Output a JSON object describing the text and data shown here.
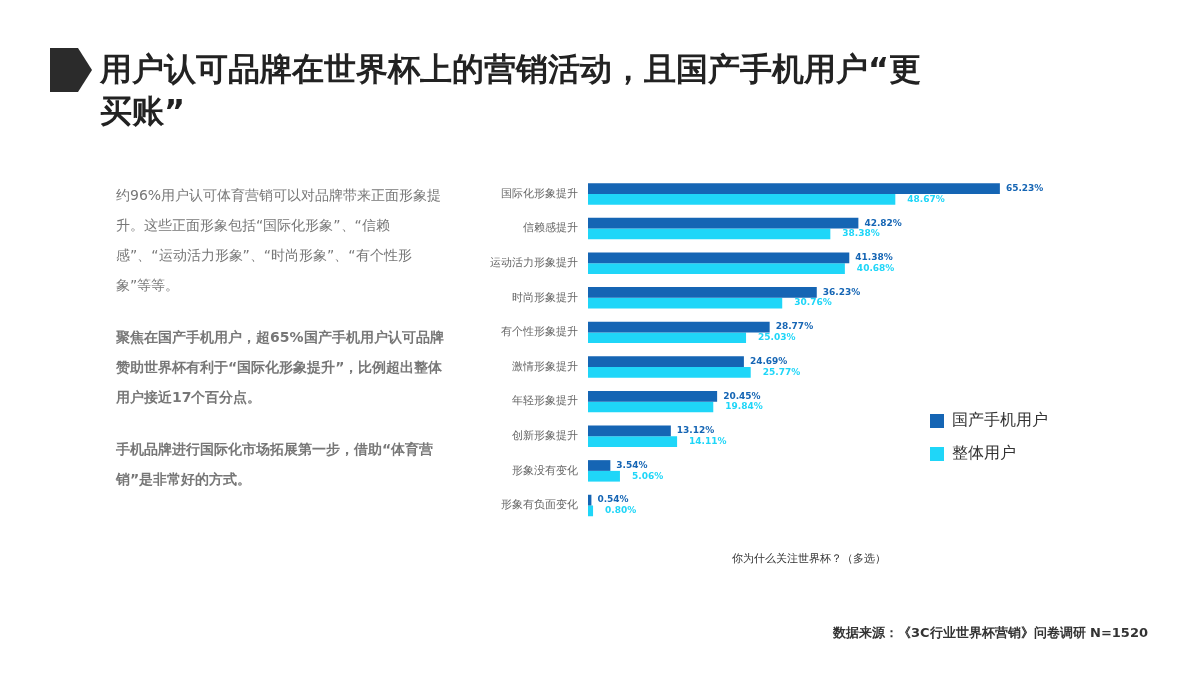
{
  "chart_data": {
    "type": "bar",
    "orientation": "horizontal",
    "title": "用户认可品牌在世界杯上的营销活动，且国产手机用户“更买账”",
    "xlabel": "你为什么关注世界杯？（多选）",
    "categories": [
      "国际化形象提升",
      "信赖感提升",
      "运动活力形象提升",
      "时尚形象提升",
      "有个性形象提升",
      "激情形象提升",
      "年轻形象提升",
      "创新形象提升",
      "形象没有变化",
      "形象有负面变化"
    ],
    "series": [
      {
        "name": "国产手机用户",
        "color": "#1565b4",
        "values": [
          65.23,
          42.82,
          41.38,
          36.23,
          28.77,
          24.69,
          20.45,
          13.12,
          3.54,
          0.54
        ],
        "value_labels": [
          "65.23%",
          "42.82%",
          "41.38%",
          "36.23%",
          "28.77%",
          "24.69%",
          "20.45%",
          "13.12%",
          "3.54%",
          "0.54%"
        ]
      },
      {
        "name": "整体用户",
        "color": "#1fd6f8",
        "values": [
          48.67,
          38.38,
          40.68,
          30.76,
          25.03,
          25.77,
          19.84,
          14.11,
          5.06,
          0.8
        ],
        "value_labels": [
          "48.67%",
          "38.38%",
          "40.68%",
          "30.76%",
          "25.03%",
          "25.77%",
          "19.84%",
          "14.11%",
          "5.06%",
          "0.80%"
        ]
      }
    ],
    "legend": "bottom right",
    "tick_labels": "y",
    "annotations": [
      "约96%用户认可体育营销可以对品牌带来正面形象提升。这些正面形象包括“国际化形象”、“信赖感”、“运动活力形象”、“时尚形象”、“有个性形象”等等。",
      "聚焦在国产手机用户，超65%国产手机用户认可品牌赞助世界杯有利于“国际化形象提升”，比例超出整体用户接近17个百分点。",
      "手机品牌进行国际化市场拓展第一步，借助“体育营销”是非常好的方式。",
      "数据来源：《3C行业世界杯营销》问卷调研 N=1520"
    ]
  }
}
